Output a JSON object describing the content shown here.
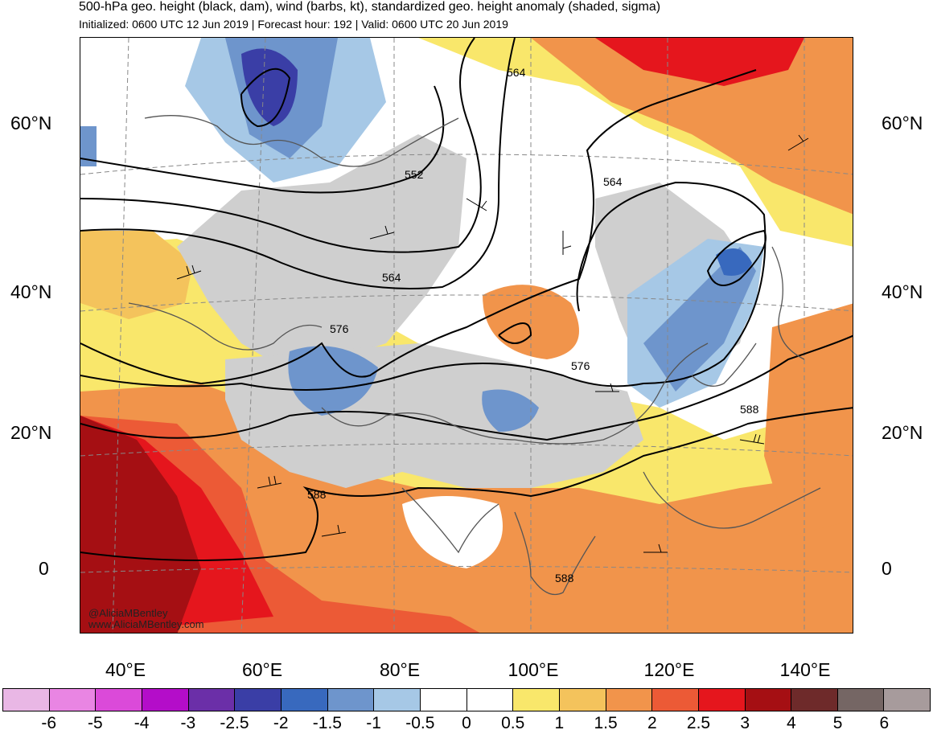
{
  "header": {
    "title": "500-hPa geo. height (black, dam), wind (barbs, kt), standardized geo. height anomaly (shaded, sigma)",
    "subtitle": "Initialized: 0600 UTC 12 Jun 2019 | Forecast hour: 192 | Valid: 0600 UTC 20 Jun 2019"
  },
  "map": {
    "lat_labels": [
      "60°N",
      "40°N",
      "20°N",
      "0"
    ],
    "lon_labels": [
      "40°E",
      "60°E",
      "80°E",
      "100°E",
      "120°E",
      "140°E"
    ],
    "contour_labels": [
      "564",
      "552",
      "564",
      "564",
      "576",
      "576",
      "588",
      "588",
      "588"
    ],
    "credits": [
      "@AliciaMBentley",
      "www.AliciaMBentley.com"
    ]
  },
  "colorbar": {
    "colors": [
      "#e9b7e5",
      "#e985e3",
      "#db4ad9",
      "#b40dc9",
      "#6b2fa8",
      "#3a3ea6",
      "#3869be",
      "#6e95cc",
      "#a6c8e6",
      "#ffffff",
      "#ffffff",
      "#f9e76b",
      "#f4c35c",
      "#f1944b",
      "#ec5a36",
      "#e5161d",
      "#a50f13",
      "#6e2a2a",
      "#756664",
      "#a79b9c"
    ],
    "ticks": [
      "-6",
      "-5",
      "-4",
      "-3",
      "-2.5",
      "-2",
      "-1.5",
      "-1",
      "-0.5",
      "0",
      "0.5",
      "1",
      "1.5",
      "2",
      "2.5",
      "3",
      "4",
      "5",
      "6"
    ]
  }
}
